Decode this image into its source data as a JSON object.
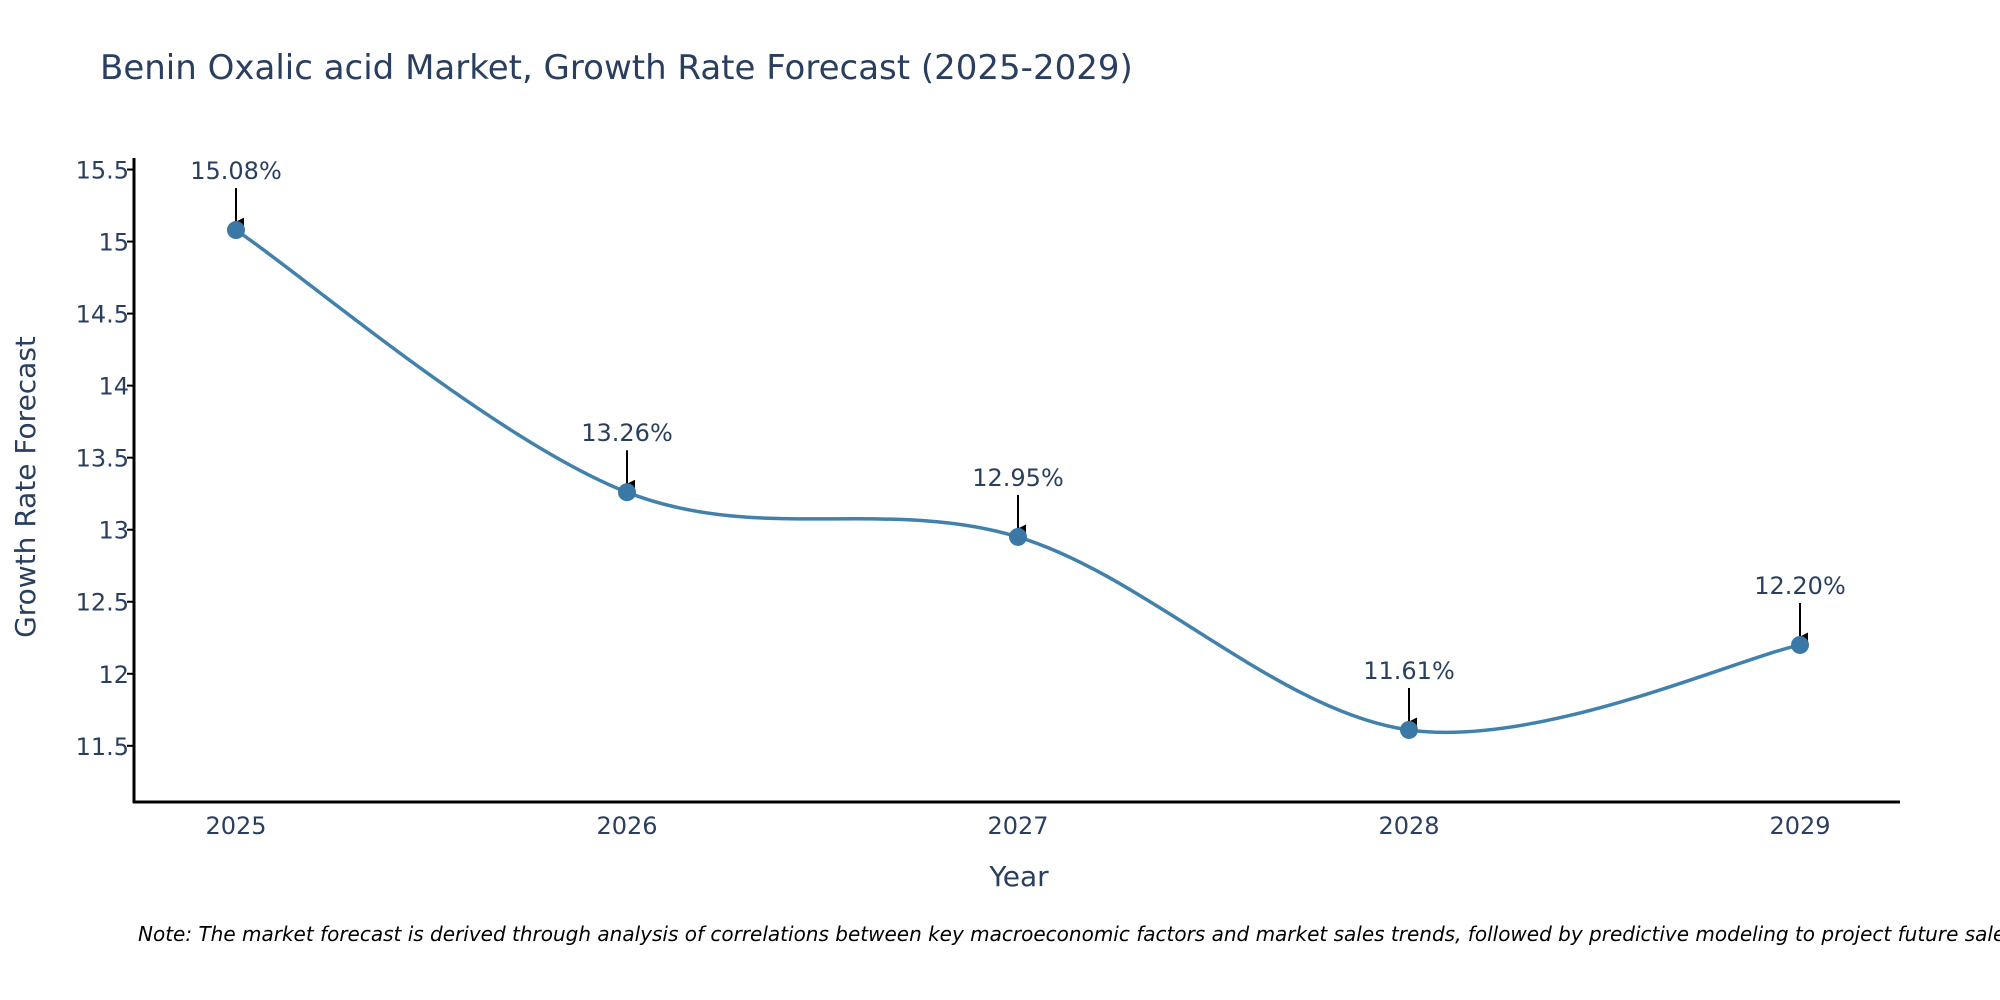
{
  "chart_data": {
    "type": "line",
    "title": "Benin Oxalic acid Market, Growth Rate Forecast (2025-2029)",
    "xlabel": "Year",
    "ylabel": "Growth Rate Forecast",
    "categories": [
      "2025",
      "2026",
      "2027",
      "2028",
      "2029"
    ],
    "values": [
      15.08,
      13.26,
      12.95,
      11.61,
      12.2
    ],
    "data_labels": [
      "15.08%",
      "13.26%",
      "12.95%",
      "11.61%",
      "12.20%"
    ],
    "y_ticks": [
      11.5,
      12,
      12.5,
      13,
      13.5,
      14,
      14.5,
      15,
      15.5
    ],
    "y_tick_labels": [
      "11.5",
      "12",
      "12.5",
      "13",
      "13.5",
      "14",
      "14.5",
      "15",
      "15.5"
    ],
    "ylim": [
      11.11,
      15.58
    ],
    "grid": false,
    "line_shape": "spline",
    "colors": {
      "line": "#4181ab",
      "marker": "#3a78a5",
      "axis": "#000000",
      "text": "#2a3f5f",
      "arrow": "#000000"
    },
    "note": "Note: The market forecast is derived through analysis of correlations between key macroeconomic factors and market sales trends, followed by predictive modeling to project future sales"
  }
}
